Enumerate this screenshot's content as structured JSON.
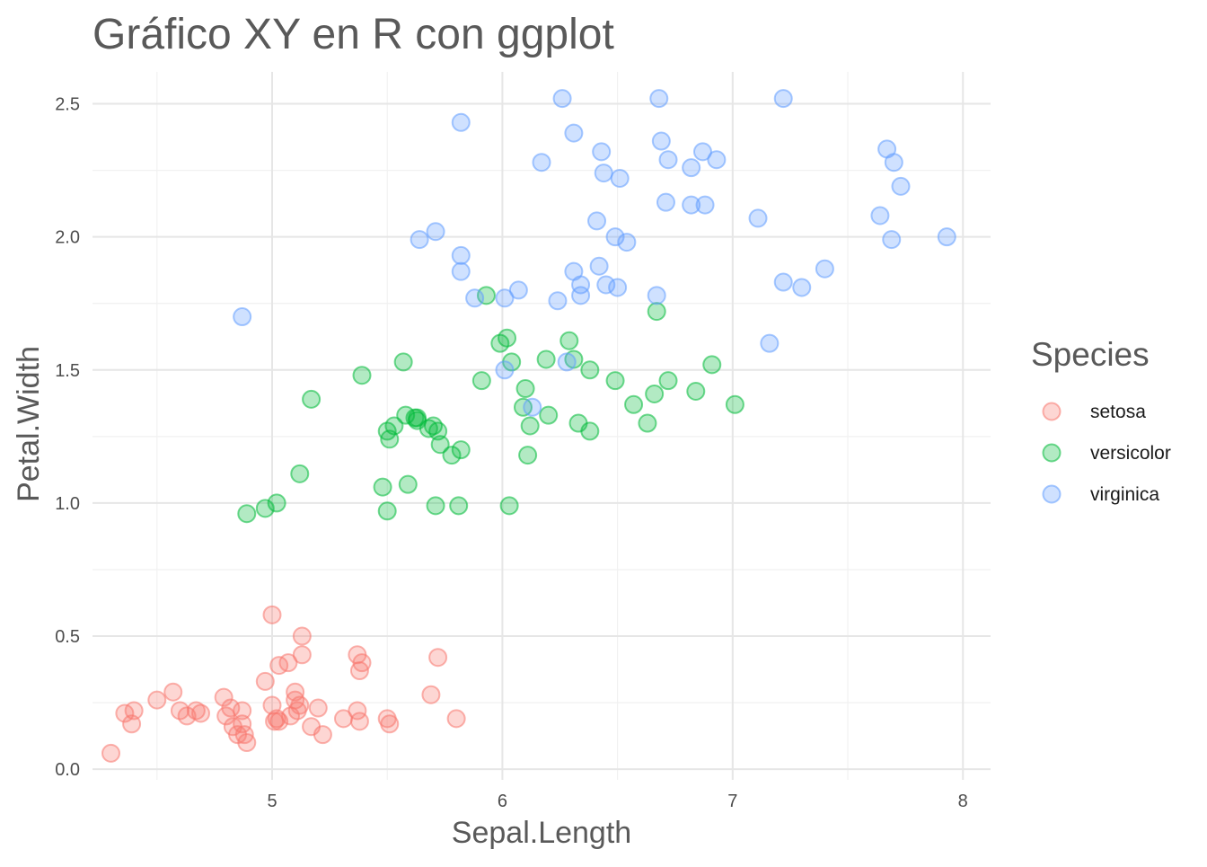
{
  "chart_data": {
    "type": "scatter",
    "title": "Gráfico XY en R con ggplot",
    "xlabel": "Sepal.Length",
    "ylabel": "Petal.Width",
    "xlim": [
      4.22,
      8.12
    ],
    "ylim": [
      -0.04,
      2.62
    ],
    "x_ticks": [
      "5",
      "6",
      "7",
      "8"
    ],
    "x_tick_values": [
      5,
      6,
      7,
      8
    ],
    "y_ticks": [
      "0.0",
      "0.5",
      "1.0",
      "1.5",
      "2.0",
      "2.5"
    ],
    "y_tick_values": [
      0,
      0.5,
      1.0,
      1.5,
      2.0,
      2.5
    ],
    "grid": true,
    "legend": {
      "title": "Species",
      "position": "right",
      "entries": [
        "setosa",
        "versicolor",
        "virginica"
      ]
    },
    "colors": {
      "setosa": "#F8766D",
      "versicolor": "#00BA38",
      "virginica": "#619CFF"
    },
    "series": [
      {
        "name": "setosa",
        "points": [
          [
            4.3,
            0.06
          ],
          [
            4.36,
            0.21
          ],
          [
            4.4,
            0.22
          ],
          [
            4.39,
            0.17
          ],
          [
            4.5,
            0.26
          ],
          [
            4.57,
            0.29
          ],
          [
            4.6,
            0.22
          ],
          [
            4.63,
            0.2
          ],
          [
            4.67,
            0.22
          ],
          [
            4.69,
            0.21
          ],
          [
            4.79,
            0.27
          ],
          [
            4.8,
            0.2
          ],
          [
            4.82,
            0.23
          ],
          [
            4.83,
            0.16
          ],
          [
            4.85,
            0.13
          ],
          [
            4.87,
            0.22
          ],
          [
            4.87,
            0.17
          ],
          [
            4.88,
            0.13
          ],
          [
            4.89,
            0.1
          ],
          [
            4.97,
            0.33
          ],
          [
            5.0,
            0.58
          ],
          [
            5.0,
            0.24
          ],
          [
            5.01,
            0.18
          ],
          [
            5.02,
            0.19
          ],
          [
            5.03,
            0.18
          ],
          [
            5.03,
            0.39
          ],
          [
            5.07,
            0.4
          ],
          [
            5.08,
            0.2
          ],
          [
            5.1,
            0.29
          ],
          [
            5.1,
            0.26
          ],
          [
            5.11,
            0.22
          ],
          [
            5.12,
            0.24
          ],
          [
            5.13,
            0.43
          ],
          [
            5.13,
            0.5
          ],
          [
            5.17,
            0.16
          ],
          [
            5.2,
            0.23
          ],
          [
            5.22,
            0.13
          ],
          [
            5.31,
            0.19
          ],
          [
            5.37,
            0.43
          ],
          [
            5.37,
            0.22
          ],
          [
            5.38,
            0.37
          ],
          [
            5.38,
            0.18
          ],
          [
            5.39,
            0.4
          ],
          [
            5.5,
            0.19
          ],
          [
            5.51,
            0.17
          ],
          [
            5.69,
            0.28
          ],
          [
            5.72,
            0.42
          ],
          [
            5.8,
            0.19
          ]
        ]
      },
      {
        "name": "versicolor",
        "points": [
          [
            4.89,
            0.96
          ],
          [
            4.97,
            0.98
          ],
          [
            5.02,
            1.0
          ],
          [
            5.12,
            1.11
          ],
          [
            5.17,
            1.39
          ],
          [
            5.39,
            1.48
          ],
          [
            5.48,
            1.06
          ],
          [
            5.5,
            0.97
          ],
          [
            5.5,
            1.27
          ],
          [
            5.51,
            1.24
          ],
          [
            5.53,
            1.29
          ],
          [
            5.57,
            1.53
          ],
          [
            5.58,
            1.33
          ],
          [
            5.59,
            1.07
          ],
          [
            5.62,
            1.32
          ],
          [
            5.63,
            1.32
          ],
          [
            5.63,
            1.31
          ],
          [
            5.68,
            1.28
          ],
          [
            5.7,
            1.29
          ],
          [
            5.71,
            0.99
          ],
          [
            5.72,
            1.27
          ],
          [
            5.73,
            1.22
          ],
          [
            5.78,
            1.18
          ],
          [
            5.81,
            0.99
          ],
          [
            5.82,
            1.2
          ],
          [
            5.91,
            1.46
          ],
          [
            5.93,
            1.78
          ],
          [
            5.99,
            1.6
          ],
          [
            6.02,
            1.62
          ],
          [
            6.03,
            0.99
          ],
          [
            6.04,
            1.53
          ],
          [
            6.09,
            1.36
          ],
          [
            6.1,
            1.43
          ],
          [
            6.11,
            1.18
          ],
          [
            6.12,
            1.29
          ],
          [
            6.19,
            1.54
          ],
          [
            6.2,
            1.33
          ],
          [
            6.29,
            1.61
          ],
          [
            6.31,
            1.54
          ],
          [
            6.33,
            1.3
          ],
          [
            6.38,
            1.5
          ],
          [
            6.38,
            1.27
          ],
          [
            6.49,
            1.46
          ],
          [
            6.57,
            1.37
          ],
          [
            6.63,
            1.3
          ],
          [
            6.66,
            1.41
          ],
          [
            6.67,
            1.72
          ],
          [
            6.72,
            1.46
          ],
          [
            6.84,
            1.42
          ],
          [
            6.91,
            1.52
          ],
          [
            7.01,
            1.37
          ]
        ]
      },
      {
        "name": "virginica",
        "points": [
          [
            4.87,
            1.7
          ],
          [
            5.64,
            1.99
          ],
          [
            5.71,
            2.02
          ],
          [
            5.82,
            2.43
          ],
          [
            5.82,
            1.93
          ],
          [
            5.82,
            1.87
          ],
          [
            5.88,
            1.77
          ],
          [
            6.01,
            1.77
          ],
          [
            6.01,
            1.5
          ],
          [
            6.07,
            1.8
          ],
          [
            6.13,
            1.36
          ],
          [
            6.17,
            2.28
          ],
          [
            6.24,
            1.76
          ],
          [
            6.26,
            2.52
          ],
          [
            6.28,
            1.53
          ],
          [
            6.31,
            2.39
          ],
          [
            6.31,
            1.87
          ],
          [
            6.34,
            1.82
          ],
          [
            6.34,
            1.78
          ],
          [
            6.41,
            2.06
          ],
          [
            6.42,
            1.89
          ],
          [
            6.43,
            2.32
          ],
          [
            6.44,
            2.24
          ],
          [
            6.45,
            1.82
          ],
          [
            6.49,
            2.0
          ],
          [
            6.5,
            1.81
          ],
          [
            6.51,
            2.22
          ],
          [
            6.54,
            1.98
          ],
          [
            6.67,
            1.78
          ],
          [
            6.68,
            2.52
          ],
          [
            6.69,
            2.36
          ],
          [
            6.71,
            2.13
          ],
          [
            6.72,
            2.29
          ],
          [
            6.82,
            2.26
          ],
          [
            6.82,
            2.12
          ],
          [
            6.87,
            2.32
          ],
          [
            6.88,
            2.12
          ],
          [
            6.93,
            2.29
          ],
          [
            7.11,
            2.07
          ],
          [
            7.16,
            1.6
          ],
          [
            7.22,
            2.52
          ],
          [
            7.22,
            1.83
          ],
          [
            7.3,
            1.81
          ],
          [
            7.4,
            1.88
          ],
          [
            7.64,
            2.08
          ],
          [
            7.67,
            2.33
          ],
          [
            7.69,
            1.99
          ],
          [
            7.7,
            2.28
          ],
          [
            7.73,
            2.19
          ],
          [
            7.93,
            2.0
          ]
        ]
      }
    ]
  }
}
